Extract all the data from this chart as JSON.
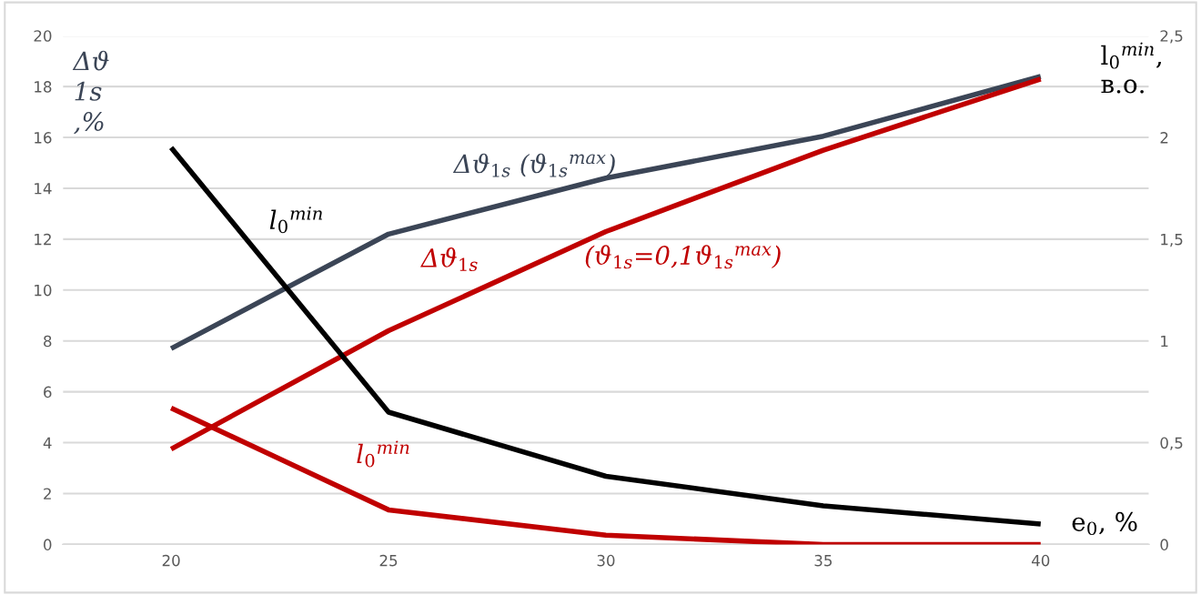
{
  "chart_data": {
    "type": "line",
    "categories": [
      "20",
      "25",
      "30",
      "35",
      "40"
    ],
    "xlabel": "e$_{0}$, %",
    "ylabel": "Δϑ\n1s\n,%",
    "y2label": "l$_{0}$$^{min}$,\nв.о.",
    "ylim": [
      0,
      20
    ],
    "yticks": [
      0,
      2,
      4,
      6,
      8,
      10,
      12,
      14,
      16,
      18,
      20
    ],
    "y2lim": [
      0,
      2.5
    ],
    "y2ticks": [
      0,
      {
        "value": 0.5,
        "label": "0,5"
      },
      1,
      {
        "value": 1.5,
        "label": "1,5"
      },
      2,
      {
        "value": 2.5,
        "label": "2,5"
      }
    ],
    "grid": "y",
    "legend": false,
    "marker": "none",
    "line_style": "solid",
    "series": [
      {
        "name": "Δϑ$_{1s}$ (ϑ$_{1s}$$^{max}$)",
        "color": "#3b4556",
        "values": [
          7.7,
          12.2,
          14.4,
          16.05,
          18.4
        ]
      },
      {
        "name": "Δϑ$_{1s}$",
        "color": "#c00000",
        "values": [
          3.75,
          8.4,
          12.3,
          15.5,
          18.3
        ]
      },
      {
        "name": "l$_{0}$$^{min}$",
        "color": "#000000",
        "axis": "y2",
        "values": [
          1.95,
          0.65,
          0.335,
          0.19,
          0.1
        ]
      },
      {
        "name": "l$_{0}$$^{min}$",
        "color": "#c00000",
        "axis": "y2",
        "values": [
          0.67,
          0.17,
          0.045,
          0,
          0
        ]
      }
    ],
    "annotations": [
      "(ϑ$_{1s}$=0,1ϑ$_{1s}$$^{max}$)"
    ]
  }
}
